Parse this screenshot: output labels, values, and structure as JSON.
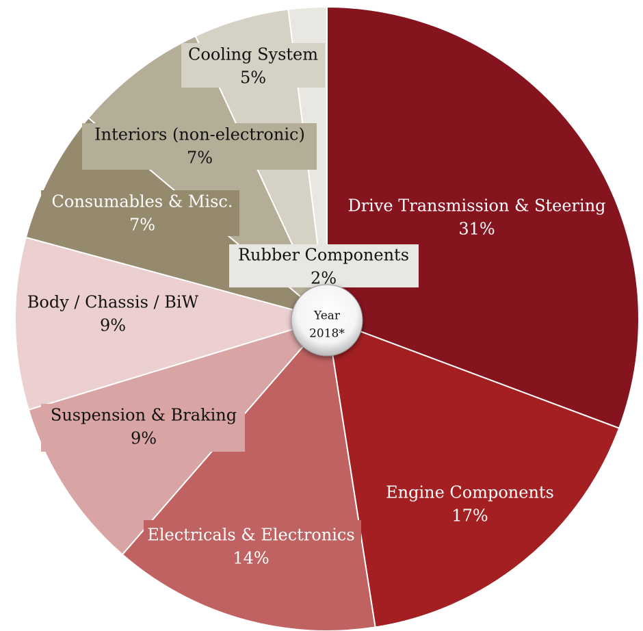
{
  "chart_data": {
    "type": "pie",
    "center_label": [
      "Year",
      "2018*"
    ],
    "categories": [
      "Drive Transmission & Steering",
      "Engine Components",
      "Electricals & Electronics",
      "Suspension & Braking",
      "Body / Chassis / BiW",
      "Consumables & Misc.",
      "Interiors (non-electronic)",
      "Cooling System",
      "Rubber Components"
    ],
    "values": [
      31,
      17,
      14,
      9,
      9,
      7,
      7,
      5,
      2
    ],
    "value_labels": [
      "31%",
      "17%",
      "14%",
      "9%",
      "9%",
      "7%",
      "7%",
      "5%",
      "2%"
    ],
    "colors": [
      "#85141f",
      "#a31f22",
      "#c06262",
      "#d9a4a4",
      "#ecd0d0",
      "#958a6e",
      "#b4ad97",
      "#d5d1c4",
      "#e8e7e2"
    ]
  }
}
